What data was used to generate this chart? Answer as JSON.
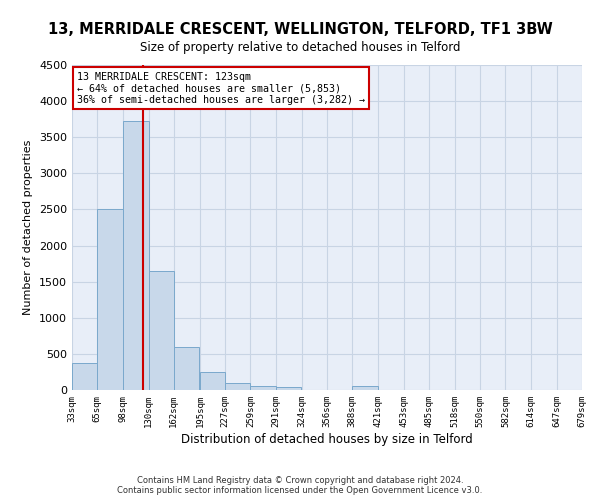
{
  "title": "13, MERRIDALE CRESCENT, WELLINGTON, TELFORD, TF1 3BW",
  "subtitle": "Size of property relative to detached houses in Telford",
  "xlabel": "Distribution of detached houses by size in Telford",
  "ylabel": "Number of detached properties",
  "annotation_line1": "13 MERRIDALE CRESCENT: 123sqm",
  "annotation_line2": "← 64% of detached houses are smaller (5,853)",
  "annotation_line3": "36% of semi-detached houses are larger (3,282) →",
  "property_size": 123,
  "bar_color": "#c8d8ea",
  "bar_edge_color": "#7aa8cc",
  "vline_color": "#cc0000",
  "annotation_box_color": "#ffffff",
  "annotation_box_edge": "#cc0000",
  "grid_color": "#c8d4e4",
  "background_color": "#e8eef8",
  "bins": [
    33,
    65,
    98,
    130,
    162,
    195,
    227,
    259,
    291,
    324,
    356,
    388,
    421,
    453,
    485,
    518,
    550,
    582,
    614,
    647,
    679
  ],
  "counts": [
    380,
    2510,
    3730,
    1650,
    600,
    245,
    100,
    60,
    40,
    0,
    0,
    55,
    0,
    0,
    0,
    0,
    0,
    0,
    0,
    0
  ],
  "ylim": [
    0,
    4500
  ],
  "yticks": [
    0,
    500,
    1000,
    1500,
    2000,
    2500,
    3000,
    3500,
    4000,
    4500
  ],
  "footer_line1": "Contains HM Land Registry data © Crown copyright and database right 2024.",
  "footer_line2": "Contains public sector information licensed under the Open Government Licence v3.0."
}
